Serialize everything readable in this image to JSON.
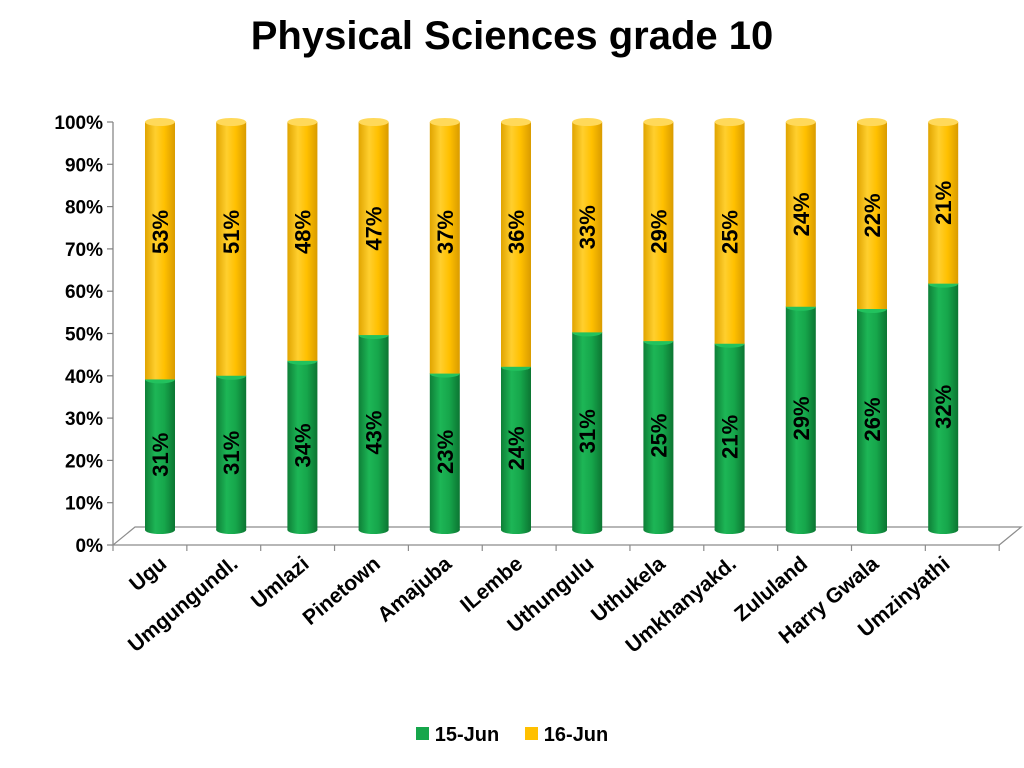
{
  "chart_data": {
    "type": "bar",
    "stacked": true,
    "percent_axis": true,
    "title": "Physical Sciences grade 10",
    "categories": [
      "Ugu",
      "Umgungundl.",
      "Umlazi",
      "Pinetown",
      "Amajuba",
      "ILembe",
      "Uthungulu",
      "Uthukela",
      "Umkhanyakd.",
      "Zululand",
      "Harry Gwala",
      "Umzinyathi"
    ],
    "series": [
      {
        "name": "15-Jun",
        "color": "#16A64B",
        "values": [
          31,
          31,
          34,
          43,
          23,
          24,
          31,
          25,
          21,
          29,
          26,
          32
        ],
        "labels": [
          "31%",
          "31%",
          "34%",
          "43%",
          "23%",
          "24%",
          "31%",
          "25%",
          "21%",
          "29%",
          "26%",
          "32%"
        ]
      },
      {
        "name": "16-Jun",
        "color": "#FFC000",
        "values": [
          53,
          51,
          48,
          47,
          37,
          36,
          33,
          29,
          25,
          24,
          22,
          21
        ],
        "labels": [
          "53%",
          "51%",
          "48%",
          "47%",
          "37%",
          "36%",
          "33%",
          "29%",
          "25%",
          "24%",
          "22%",
          "21%"
        ]
      }
    ],
    "ylim": [
      0,
      100
    ],
    "yticks": [
      "0%",
      "10%",
      "20%",
      "30%",
      "40%",
      "50%",
      "60%",
      "70%",
      "80%",
      "90%",
      "100%"
    ],
    "grid": false,
    "legend_position": "bottom"
  }
}
